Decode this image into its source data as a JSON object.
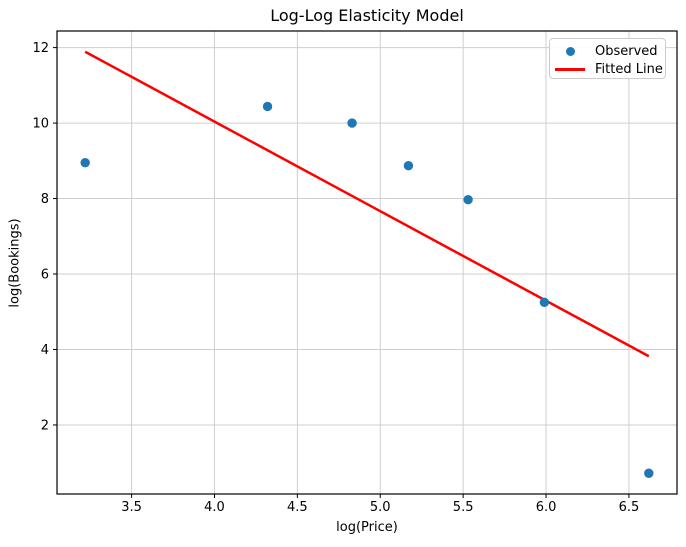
{
  "chart_data": {
    "type": "scatter",
    "title": "Log-Log Elasticity Model",
    "xlabel": "log(Price)",
    "ylabel": "log(Bookings)",
    "xlim": [
      3.05,
      6.79
    ],
    "ylim": [
      0.17,
      12.44
    ],
    "xticks": [
      3.5,
      4.0,
      4.5,
      5.0,
      5.5,
      6.0,
      6.5
    ],
    "xtick_labels": [
      "3.5",
      "4.0",
      "4.5",
      "5.0",
      "5.5",
      "6.0",
      "6.5"
    ],
    "yticks": [
      2,
      4,
      6,
      8,
      10,
      12
    ],
    "ytick_labels": [
      "2",
      "4",
      "6",
      "8",
      "10",
      "12"
    ],
    "grid": true,
    "legend_position": "upper right",
    "series": [
      {
        "name": "Observed",
        "type": "scatter",
        "color": "#1f77b4",
        "x": [
          3.22,
          4.32,
          4.83,
          5.17,
          5.53,
          5.99,
          6.62
        ],
        "y": [
          8.95,
          10.44,
          10.0,
          8.87,
          7.97,
          5.25,
          0.72
        ]
      },
      {
        "name": "Fitted Line",
        "type": "line",
        "color": "#ff0000",
        "x": [
          3.22,
          6.62
        ],
        "y": [
          11.89,
          3.82
        ]
      }
    ],
    "colors": {
      "grid": "#cfcfcf",
      "spine": "#000000",
      "background": "#ffffff",
      "text": "#000000"
    }
  }
}
